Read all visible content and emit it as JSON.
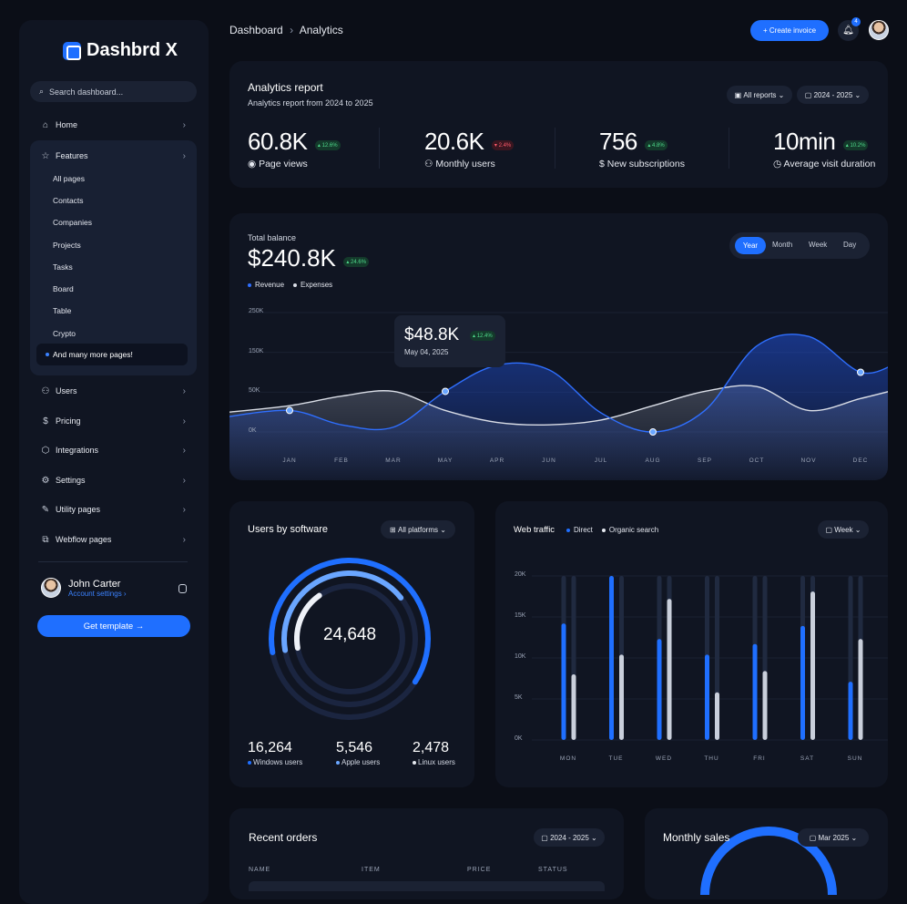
{
  "sidebar": {
    "logo": "Dashbrd X",
    "search_placeholder": "Search dashboard...",
    "items": [
      {
        "label": "Home"
      },
      {
        "label": "Features"
      },
      {
        "label": "Users"
      },
      {
        "label": "Pricing"
      },
      {
        "label": "Integrations"
      },
      {
        "label": "Settings"
      },
      {
        "label": "Utility pages"
      },
      {
        "label": "Webflow pages"
      }
    ],
    "sub_items": [
      "All pages",
      "Contacts",
      "Companies",
      "Projects",
      "Tasks",
      "Board",
      "Table",
      "Crypto"
    ],
    "sub_active": "And many more pages!",
    "user_name": "John Carter",
    "user_link": "Account settings",
    "cta": "Get template"
  },
  "header": {
    "crumb_1": "Dashboard",
    "crumb_sep": "›",
    "crumb_2": "Analytics",
    "create_label": "+ Create invoice",
    "notif_count": "4"
  },
  "report": {
    "title": "Analytics report",
    "subtitle": "Analytics report from 2024 to 2025",
    "filter_reports": "All reports",
    "filter_period": "2024 - 2025",
    "kpis": [
      {
        "value": "60.8K",
        "tag": "12.6%",
        "dir": "up",
        "label": "Page views"
      },
      {
        "value": "20.6K",
        "tag": "2.4%",
        "dir": "down",
        "label": "Monthly users"
      },
      {
        "value": "756",
        "tag": "4.8%",
        "dir": "up",
        "label": "New subscriptions"
      },
      {
        "value": "10min",
        "tag": "10.2%",
        "dir": "up",
        "label": "Average visit duration"
      }
    ]
  },
  "balance": {
    "title": "Total balance",
    "value": "$240.8K",
    "tag": "24.6%",
    "legend_revenue": "Revenue",
    "legend_expenses": "Expenses",
    "tabs": [
      "Year",
      "Month",
      "Week",
      "Day"
    ],
    "active_tab": "Year",
    "tooltip_value": "$48.8K",
    "tooltip_tag": "12.4%",
    "tooltip_date": "May 04, 2025",
    "colors": {
      "revenue": "#2f6fff",
      "expenses": "#d9dde6"
    }
  },
  "software": {
    "title": "Users by software",
    "filter": "All platforms",
    "total": "24,648",
    "stats": [
      {
        "value": "16,264",
        "label": "Windows users",
        "color": "#1f6fff"
      },
      {
        "value": "5,546",
        "label": "Apple users",
        "color": "#6aa6ff"
      },
      {
        "value": "2,478",
        "label": "Linux users",
        "color": "#e6e9f0"
      }
    ]
  },
  "traffic": {
    "title": "Web traffic",
    "legend_direct": "Direct",
    "legend_organic": "Organic search",
    "filter": "Week"
  },
  "orders": {
    "title": "Recent orders",
    "filter": "2024 - 2025",
    "columns": [
      "NAME",
      "ITEM",
      "PRICE",
      "STATUS"
    ]
  },
  "sales": {
    "title": "Monthly sales",
    "filter": "Mar 2025"
  },
  "chart_data": [
    {
      "type": "area",
      "title": "Total balance",
      "categories": [
        "JAN",
        "FEB",
        "MAR",
        "MAY",
        "APR",
        "JUN",
        "JUL",
        "AUG",
        "SEP",
        "OCT",
        "NOV",
        "DEC"
      ],
      "y_ticks": [
        "250K",
        "150K",
        "50K",
        "0K"
      ],
      "ylim": [
        0,
        250
      ],
      "series": [
        {
          "name": "Revenue",
          "values": [
            45,
            15,
            10,
            85,
            140,
            130,
            40,
            0,
            45,
            180,
            200,
            125
          ]
        },
        {
          "name": "Expenses",
          "values": [
            55,
            75,
            85,
            45,
            20,
            15,
            25,
            55,
            85,
            95,
            45,
            70
          ]
        }
      ]
    },
    {
      "type": "bar",
      "title": "Web traffic",
      "categories": [
        "MON",
        "TUE",
        "WED",
        "THU",
        "FRI",
        "SAT",
        "SUN"
      ],
      "y_ticks": [
        "20K",
        "15K",
        "10K",
        "5K",
        "0K"
      ],
      "ylim": [
        0,
        20000
      ],
      "series": [
        {
          "name": "Direct",
          "values": [
            14200,
            20000,
            12300,
            10400,
            11700,
            13900,
            7100
          ]
        },
        {
          "name": "Organic search",
          "values": [
            8000,
            10400,
            17200,
            5800,
            8400,
            18100,
            12300
          ]
        }
      ]
    },
    {
      "type": "pie",
      "title": "Users by software",
      "categories": [
        "Windows users",
        "Apple users",
        "Linux users"
      ],
      "values": [
        16264,
        5546,
        2478
      ]
    }
  ]
}
